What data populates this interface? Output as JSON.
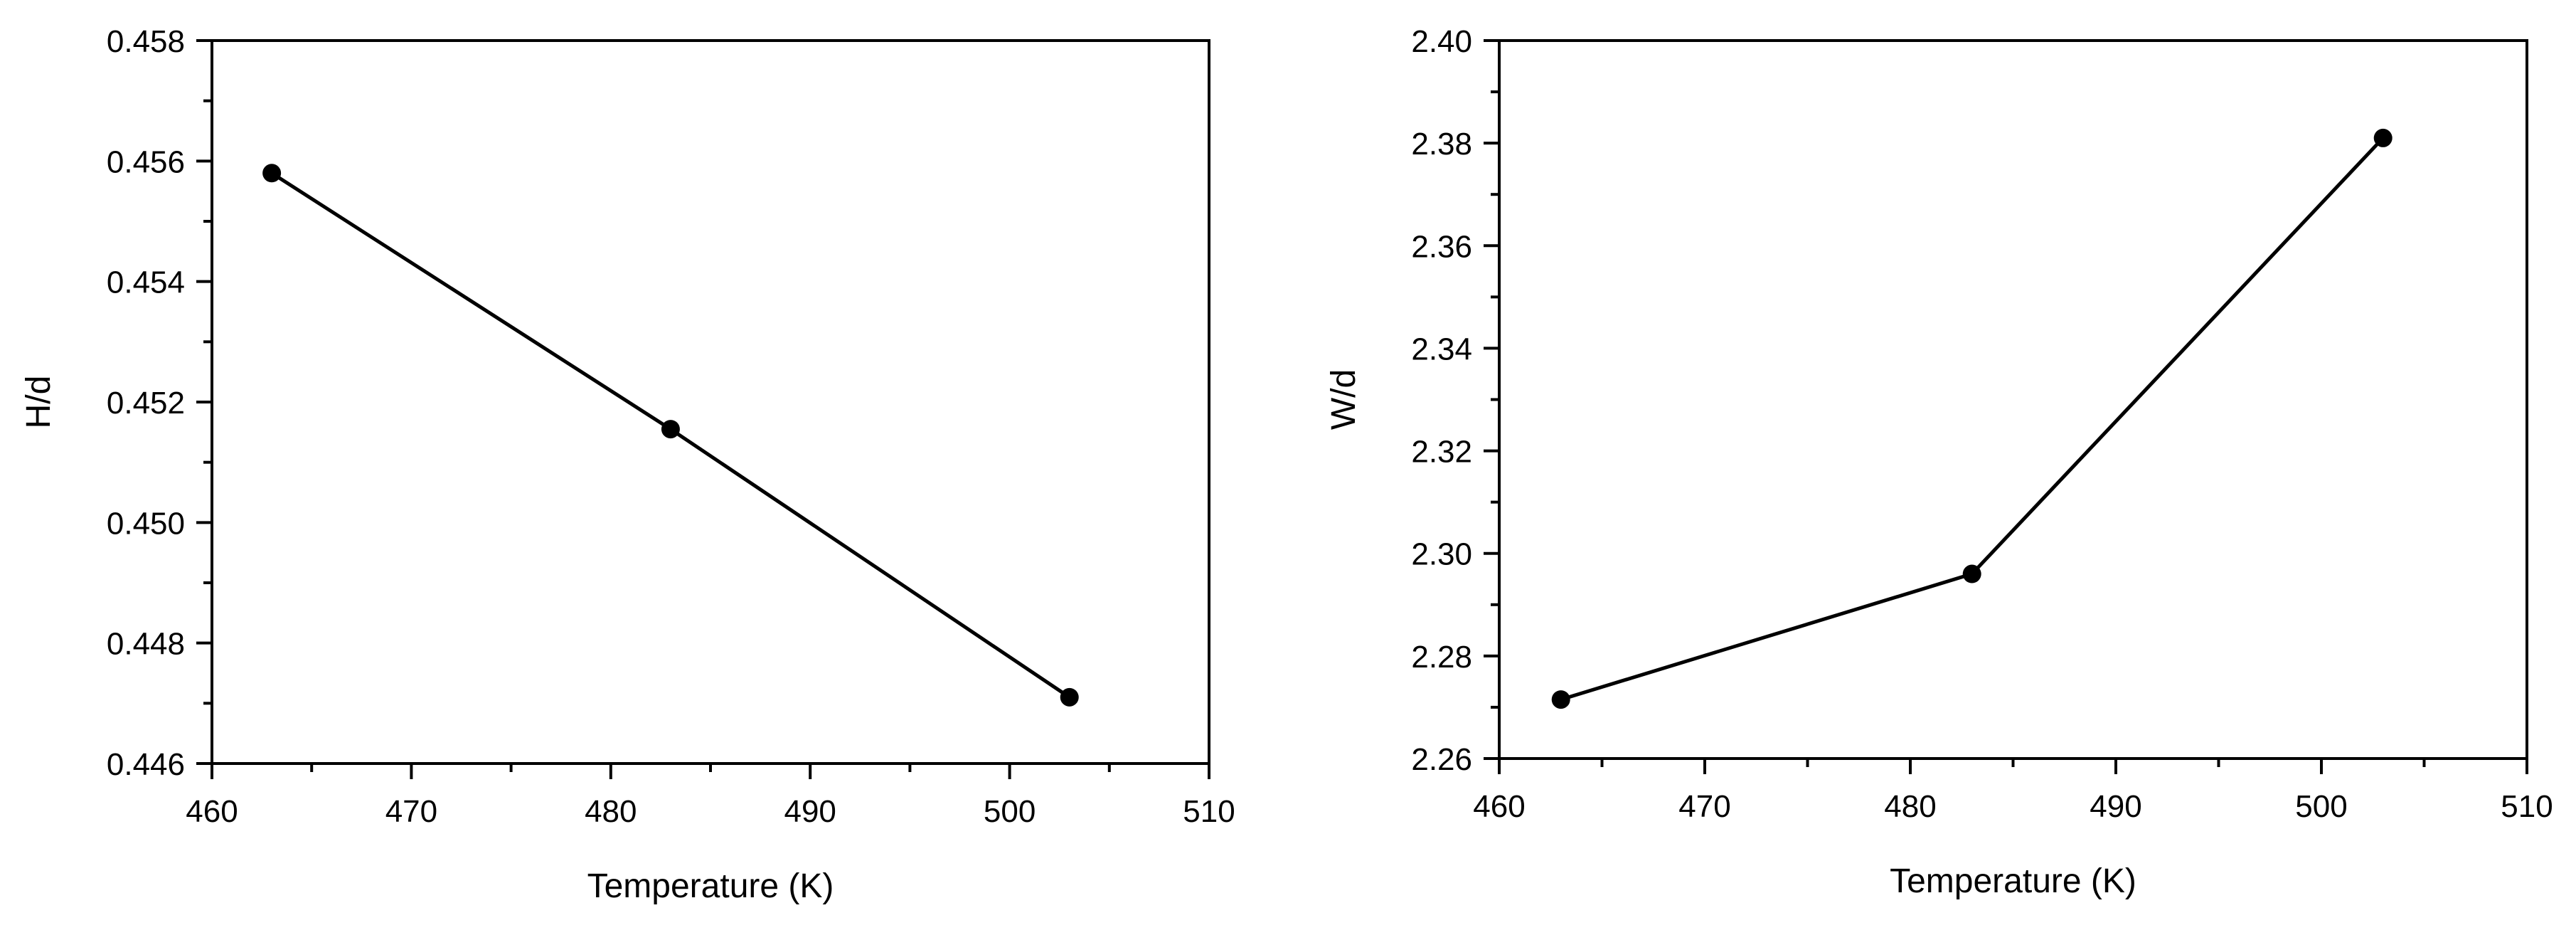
{
  "chart_data": [
    {
      "type": "line",
      "xlabel": "Temperature (K)",
      "ylabel": "H/d",
      "xlim": [
        460,
        510
      ],
      "ylim": [
        0.446,
        0.458
      ],
      "xticks": [
        "460",
        "470",
        "480",
        "490",
        "500",
        "510"
      ],
      "yticks": [
        "0.446",
        "0.448",
        "0.450",
        "0.452",
        "0.454",
        "0.456",
        "0.458"
      ],
      "grid": false,
      "series": [
        {
          "x": [
            463,
            483,
            503
          ],
          "values": [
            0.4558,
            0.45155,
            0.4471
          ]
        }
      ]
    },
    {
      "type": "line",
      "xlabel": "Temperature (K)",
      "ylabel": "W/d",
      "xlim": [
        460,
        510
      ],
      "ylim": [
        2.26,
        2.4
      ],
      "xticks": [
        "460",
        "470",
        "480",
        "490",
        "500",
        "510"
      ],
      "yticks": [
        "2.26",
        "2.28",
        "2.30",
        "2.32",
        "2.34",
        "2.36",
        "2.38",
        "2.40"
      ],
      "grid": false,
      "series": [
        {
          "x": [
            463,
            483,
            503
          ],
          "values": [
            2.2715,
            2.296,
            2.381
          ]
        }
      ]
    }
  ]
}
